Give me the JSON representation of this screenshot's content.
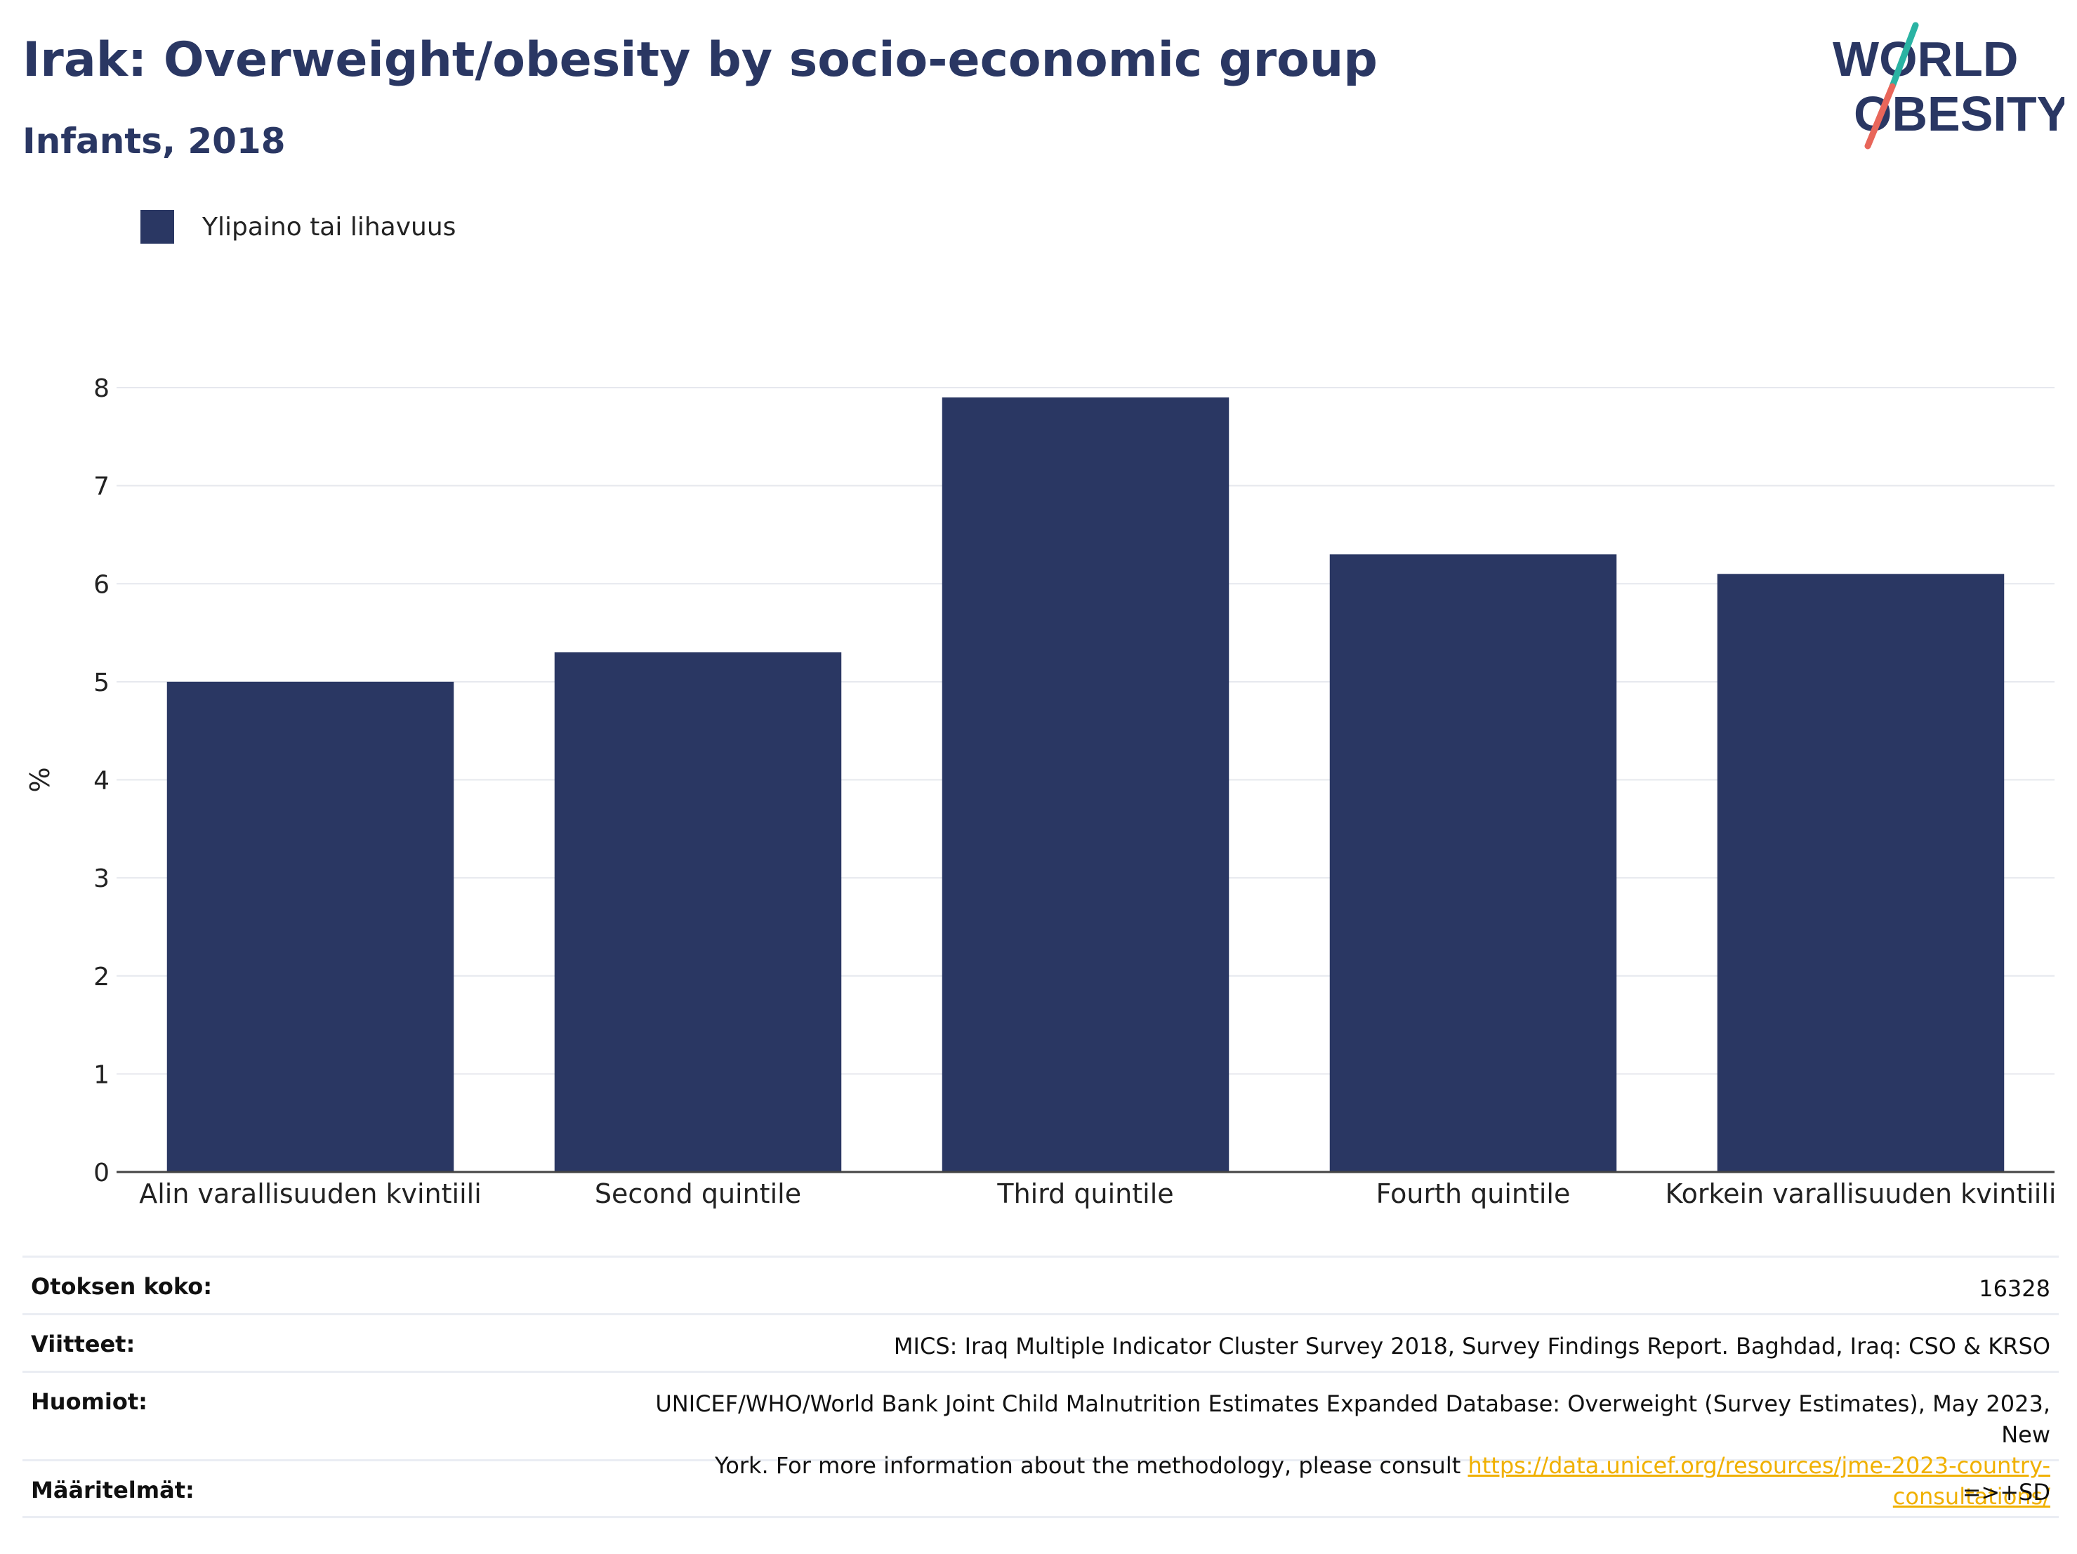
{
  "header": {
    "title": "Irak: Overweight/obesity by socio-economic group",
    "subtitle": "Infants, 2018"
  },
  "logo": {
    "line1": "WORLD",
    "line2": "OBESITY",
    "colors": {
      "text": "#2a3763",
      "slash_top": "#2ab3a3",
      "slash_bottom": "#e8665a"
    }
  },
  "legend": {
    "label": "Ylipaino tai lihavuus",
    "color": "#2a3763"
  },
  "chart_data": {
    "type": "bar",
    "categories": [
      "Alin varallisuuden kvintiili",
      "Second quintile",
      "Third quintile",
      "Fourth quintile",
      "Korkein varallisuuden kvintiili"
    ],
    "series": [
      {
        "name": "Ylipaino tai lihavuus",
        "values": [
          5.0,
          5.3,
          7.9,
          6.3,
          6.1
        ],
        "color": "#2a3763"
      }
    ],
    "ylabel": "%",
    "xlabel": "",
    "ylim": [
      0,
      8
    ],
    "yticks": [
      "0",
      "1",
      "2",
      "3",
      "4",
      "5",
      "6",
      "7",
      "8"
    ],
    "grid": true,
    "legend_position": "top-left"
  },
  "meta": {
    "sample_size": {
      "label": "Otoksen koko:",
      "value": "16328"
    },
    "references": {
      "label": "Viitteet:",
      "value": "MICS: Iraq Multiple Indicator Cluster Survey 2018, Survey Findings Report. Baghdad, Iraq: CSO & KRSO"
    },
    "notes": {
      "label": "Huomiot:",
      "line1": "UNICEF/WHO/World Bank Joint Child Malnutrition Estimates Expanded Database: Overweight (Survey Estimates), May 2023, New",
      "line2": "York. For more information about the methodology, please consult ",
      "link": "https://data.unicef.org/resources/jme-2023-country-consultations/"
    },
    "definitions": {
      "label": "Määritelmät:",
      "value": "=>+SD"
    }
  }
}
